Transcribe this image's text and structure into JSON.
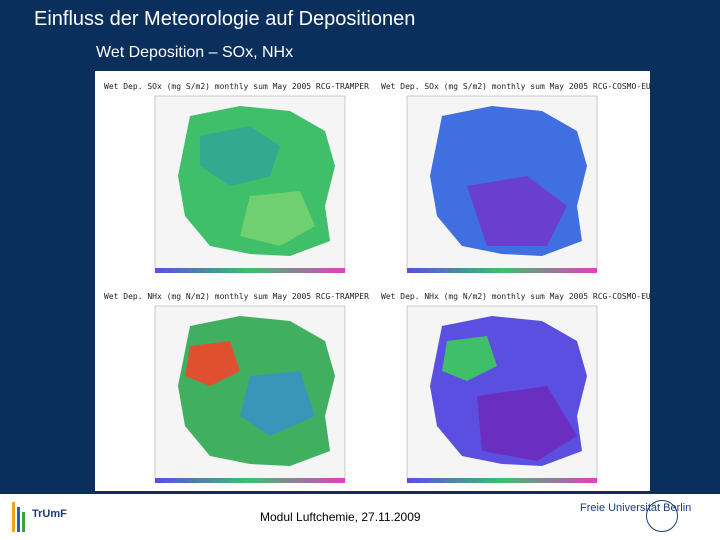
{
  "slide": {
    "title": "Einfluss der Meteorologie auf Depositionen",
    "subtitle": "Wet Deposition – SOx, NHx",
    "footer": "Modul Luftchemie, 27.11.2009"
  },
  "maps": [
    {
      "title": "Wet Dep. SOx (mg S/m2) monthly sum May 2005 RCG-TRAMPER"
    },
    {
      "title": "Wet Dep. SOx (mg S/m2) monthly sum May 2005 RCG-COSMO-EU"
    },
    {
      "title": "Wet Dep. NHx (mg N/m2) monthly sum May 2005 RCG-TRAMPER"
    },
    {
      "title": "Wet Dep. NHx (mg N/m2) monthly sum May 2005 RCG-COSMO-EU"
    }
  ],
  "logos": {
    "left": "TrUmF",
    "right": "Freie Universität Berlin"
  },
  "colors": {
    "background": "#0b2f5c",
    "tramper_main": "#3fbf6a",
    "cosmo_main": "#5a4fe0"
  }
}
